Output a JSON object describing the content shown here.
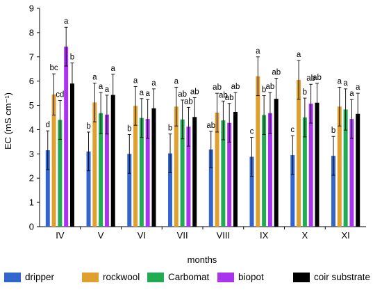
{
  "chart_data": {
    "type": "bar",
    "xlabel": "months",
    "ylabel": "EC (mS cm⁻¹)",
    "ylim": [
      0,
      9
    ],
    "yticks": [
      "0",
      "1",
      "2",
      "3",
      "4",
      "5",
      "6",
      "7",
      "8",
      "9"
    ],
    "categories": [
      "IV",
      "V",
      "VI",
      "VII",
      "VIII",
      "IX",
      "X",
      "XI"
    ],
    "grid": false,
    "legend_position": "bottom",
    "series": [
      {
        "name": "dripper",
        "color": "#3366cc",
        "values": [
          3.15,
          3.1,
          3.0,
          3.02,
          3.18,
          2.88,
          2.95,
          2.92
        ],
        "errors": [
          0.8,
          0.8,
          0.8,
          0.8,
          0.75,
          0.8,
          0.8,
          0.8
        ],
        "labels": [
          "d",
          "b",
          "b",
          "b",
          "ab",
          "c",
          "c",
          "b"
        ]
      },
      {
        "name": "rockwool",
        "color": "#e0a030",
        "values": [
          5.45,
          5.12,
          4.98,
          4.95,
          4.7,
          6.2,
          6.05,
          4.95
        ],
        "errors": [
          0.85,
          0.8,
          0.8,
          0.8,
          0.8,
          0.8,
          0.8,
          0.8
        ],
        "labels": [
          "bc",
          "a",
          "a",
          "a",
          "ab",
          "a",
          "a",
          "a"
        ]
      },
      {
        "name": "Carbomat",
        "color": "#22aa55",
        "values": [
          4.4,
          4.68,
          4.48,
          4.42,
          4.38,
          4.6,
          4.5,
          4.83
        ],
        "errors": [
          0.8,
          0.85,
          0.8,
          0.8,
          0.8,
          0.8,
          0.8,
          0.85
        ],
        "labels": [
          "cd",
          "a",
          "a",
          "ab",
          "ab",
          "b",
          "b",
          "a"
        ]
      },
      {
        "name": "biopot",
        "color": "#aa33ee",
        "values": [
          7.42,
          4.62,
          4.44,
          4.12,
          4.28,
          4.68,
          5.07,
          4.44
        ],
        "errors": [
          0.8,
          0.8,
          0.8,
          0.8,
          0.8,
          0.85,
          0.8,
          0.8
        ],
        "labels": [
          "a",
          "a",
          "a",
          "ab",
          "ab",
          "ab",
          "ab",
          "a"
        ]
      },
      {
        "name": "coir substrate",
        "color": "#000000",
        "values": [
          5.9,
          5.43,
          4.88,
          4.52,
          4.73,
          5.27,
          5.11,
          4.65
        ],
        "errors": [
          0.85,
          0.85,
          0.8,
          0.8,
          0.8,
          0.85,
          0.8,
          0.85
        ],
        "labels": [
          "b",
          "a",
          "a",
          "ab",
          "ab",
          "ab",
          "ab",
          "a"
        ]
      }
    ]
  }
}
